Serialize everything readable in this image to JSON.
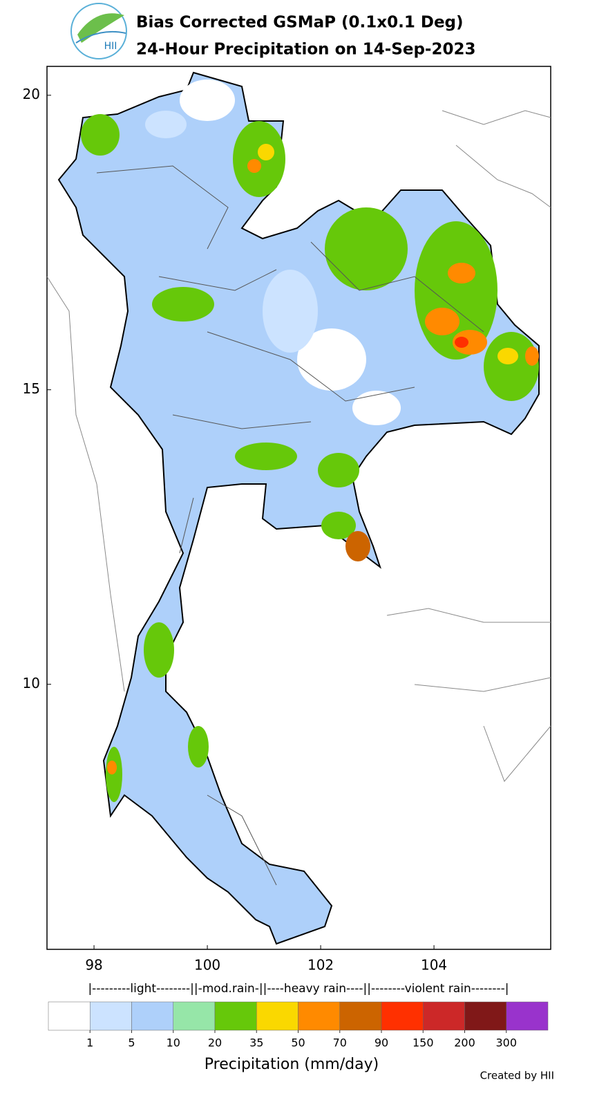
{
  "header": {
    "logo_text": "HII",
    "title": "Bias Corrected GSMaP (0.1x0.1 Deg)",
    "subtitle": "24-Hour Precipitation on 14-Sep-2023"
  },
  "map": {
    "xlim": [
      97.17,
      106.06
    ],
    "ylim": [
      5.5,
      20.49
    ],
    "xticks": [
      98,
      100,
      102,
      104
    ],
    "yticks": [
      10,
      15,
      20
    ]
  },
  "legend": {
    "category_bar": "|---------light--------||-mod.rain-||----heavy rain----||--------violent rain--------|",
    "colors": [
      "#ffffff",
      "#cce3ff",
      "#aed0fa",
      "#96e6a8",
      "#66c80a",
      "#fad800",
      "#ff8a00",
      "#cc6400",
      "#ff3000",
      "#cc2828",
      "#801818",
      "#9933cc"
    ],
    "boundaries": [
      1,
      5,
      10,
      20,
      35,
      50,
      70,
      90,
      150,
      200,
      300
    ],
    "label": "Precipitation (mm/day)"
  },
  "footer": "Created by HII"
}
